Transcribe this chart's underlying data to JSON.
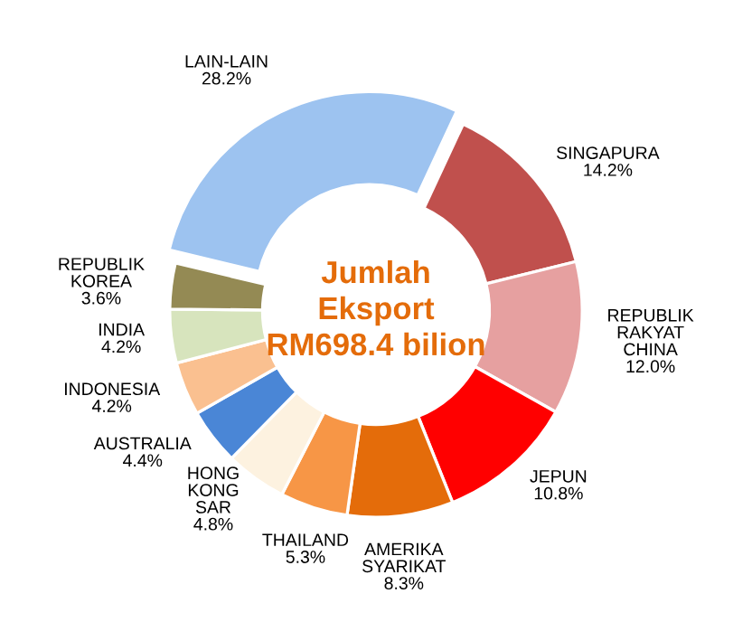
{
  "chart_data": {
    "type": "donut",
    "categories": [
      "LAIN-LAIN",
      "SINGAPURA",
      "REPUBLIK\nRAKYAT\nCHINA",
      "JEPUN",
      "AMERIKA\nSYARIKAT",
      "THAILAND",
      "HONG\nKONG\nSAR",
      "AUSTRALIA",
      "INDONESIA",
      "INDIA",
      "REPUBLIK\nKOREA"
    ],
    "values": [
      28.2,
      14.2,
      12.0,
      10.8,
      8.3,
      5.3,
      4.8,
      4.4,
      4.2,
      4.2,
      3.6
    ],
    "colors": [
      "#9dc3f0",
      "#c0504d",
      "#e6a0a0",
      "#ff0000",
      "#e46c0a",
      "#f79646",
      "#fdf2e0",
      "#4a86d6",
      "#fac090",
      "#d7e4bd",
      "#948a54"
    ],
    "value_labels": [
      "28.2%",
      "14.2%",
      "12.0%",
      "10.8%",
      "8.3%",
      "5.3%",
      "4.8%",
      "4.4%",
      "4.2%",
      "4.2%",
      "3.6%"
    ],
    "annotations": [
      "Jumlah\nEksport\nRM698.4 bilion"
    ]
  }
}
